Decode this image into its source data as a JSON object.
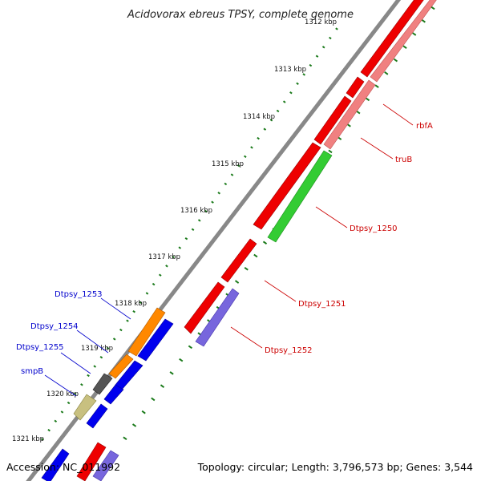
{
  "title": "Acidovorax ebreus TPSY, complete genome",
  "footer": {
    "accession": "Accession: NC_011992",
    "summary": "Topology: circular; Length: 3,796,573 bp; Genes: 3,544"
  },
  "colors": {
    "backbone": "#888888",
    "tick": "#1a7a1a",
    "forward_label": "#cc0000",
    "reverse_label": "#0000cc"
  },
  "ticks": [
    {
      "label": "1312 kbp"
    },
    {
      "label": "1313 kbp"
    },
    {
      "label": "1314 kbp"
    },
    {
      "label": "1315 kbp"
    },
    {
      "label": "1316 kbp"
    },
    {
      "label": "1317 kbp"
    },
    {
      "label": "1318 kbp"
    },
    {
      "label": "1319 kbp"
    },
    {
      "label": "1320 kbp"
    },
    {
      "label": "1321 kbp"
    }
  ],
  "genes": [
    {
      "name": "rbfA",
      "color": "#f08080",
      "strand": "forward"
    },
    {
      "name": "truB",
      "color": "#f08080",
      "strand": "forward"
    },
    {
      "name": "Dtpsy_1250",
      "color": "#33cc33",
      "strand": "forward"
    },
    {
      "name": "Dtpsy_1251",
      "color": "#ee0000",
      "strand": "forward"
    },
    {
      "name": "Dtpsy_1252",
      "color": "#7766dd",
      "strand": "forward"
    },
    {
      "name": "Dtpsy_1253",
      "color": "#ff8800",
      "strand": "reverse"
    },
    {
      "name": "Dtpsy_1254",
      "color": "#ff8800",
      "strand": "reverse"
    },
    {
      "name": "Dtpsy_1255",
      "color": "#555555",
      "strand": "reverse"
    },
    {
      "name": "smpB",
      "color": "#c8c080",
      "strand": "reverse"
    }
  ]
}
